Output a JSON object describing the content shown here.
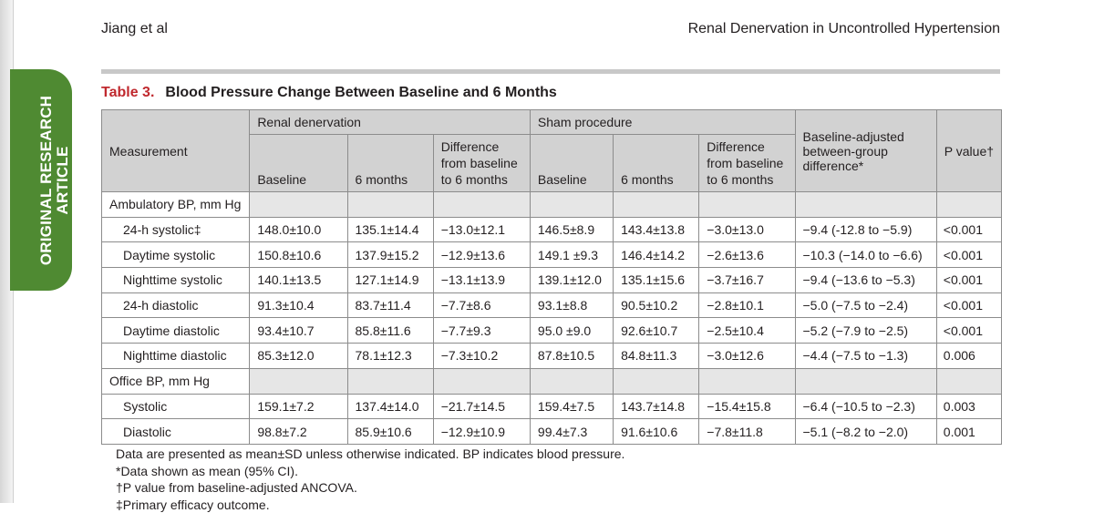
{
  "header": {
    "left": "Jiang et al",
    "right": "Renal Denervation in Uncontrolled Hypertension"
  },
  "side_tab": {
    "line1": "ORIGINAL RESEARCH",
    "line2": "ARTICLE"
  },
  "table": {
    "number": "Table 3.",
    "title": "Blood Pressure Change Between Baseline and 6 Months",
    "group_headers": {
      "rdn": "Renal denervation",
      "sham": "Sham procedure"
    },
    "col_headers": {
      "measurement": "Measurement",
      "baseline": "Baseline",
      "six_months": "6 months",
      "difference": [
        "Difference",
        "from baseline",
        "to 6 months"
      ],
      "adjusted": [
        "Baseline-adjusted",
        "between-group",
        "difference*"
      ],
      "p_value": "P value†"
    },
    "sections": [
      {
        "label": "Ambulatory BP, mm Hg",
        "rows": [
          {
            "measure": "24-h systolic‡",
            "rdn_base": "148.0±10.0",
            "rdn_6m": "135.1±14.4",
            "rdn_diff": "−13.0±12.1",
            "sham_base": "146.5±8.9",
            "sham_6m": "143.4±13.8",
            "sham_diff": "−3.0±13.0",
            "adj": "−9.4 (-12.8 to −5.9)",
            "p": "<0.001"
          },
          {
            "measure": "Daytime systolic",
            "rdn_base": "150.8±10.6",
            "rdn_6m": "137.9±15.2",
            "rdn_diff": "−12.9±13.6",
            "sham_base": "149.1 ±9.3",
            "sham_6m": "146.4±14.2",
            "sham_diff": "−2.6±13.6",
            "adj": "−10.3 (−14.0 to −6.6)",
            "p": "<0.001"
          },
          {
            "measure": "Nighttime systolic",
            "rdn_base": "140.1±13.5",
            "rdn_6m": "127.1±14.9",
            "rdn_diff": "−13.1±13.9",
            "sham_base": "139.1±12.0",
            "sham_6m": "135.1±15.6",
            "sham_diff": "−3.7±16.7",
            "adj": "−9.4 (−13.6 to −5.3)",
            "p": "<0.001"
          },
          {
            "measure": "24-h diastolic",
            "rdn_base": "91.3±10.4",
            "rdn_6m": "83.7±11.4",
            "rdn_diff": "−7.7±8.6",
            "sham_base": "93.1±8.8",
            "sham_6m": "90.5±10.2",
            "sham_diff": "−2.8±10.1",
            "adj": "−5.0 (−7.5 to −2.4)",
            "p": "<0.001"
          },
          {
            "measure": "Daytime diastolic",
            "rdn_base": "93.4±10.7",
            "rdn_6m": "85.8±11.6",
            "rdn_diff": "−7.7±9.3",
            "sham_base": "95.0 ±9.0",
            "sham_6m": "92.6±10.7",
            "sham_diff": "−2.5±10.4",
            "adj": "−5.2 (−7.9 to −2.5)",
            "p": "<0.001"
          },
          {
            "measure": "Nighttime diastolic",
            "rdn_base": "85.3±12.0",
            "rdn_6m": "78.1±12.3",
            "rdn_diff": "−7.3±10.2",
            "sham_base": "87.8±10.5",
            "sham_6m": "84.8±11.3",
            "sham_diff": "−3.0±12.6",
            "adj": "−4.4 (−7.5 to −1.3)",
            "p": "0.006"
          }
        ]
      },
      {
        "label": "Office BP, mm Hg",
        "rows": [
          {
            "measure": "Systolic",
            "rdn_base": "159.1±7.2",
            "rdn_6m": "137.4±14.0",
            "rdn_diff": "−21.7±14.5",
            "sham_base": "159.4±7.5",
            "sham_6m": "143.7±14.8",
            "sham_diff": "−15.4±15.8",
            "adj": "−6.4 (−10.5 to −2.3)",
            "p": "0.003"
          },
          {
            "measure": "Diastolic",
            "rdn_base": "98.8±7.2",
            "rdn_6m": "85.9±10.6",
            "rdn_diff": "−12.9±10.9",
            "sham_base": "99.4±7.3",
            "sham_6m": "91.6±10.6",
            "sham_diff": "−7.8±11.8",
            "adj": "−5.1 (−8.2 to −2.0)",
            "p": "0.001"
          }
        ]
      }
    ],
    "footnotes": [
      "Data are presented as mean±SD unless otherwise indicated. BP indicates blood pressure.",
      "*Data shown as mean (95% CI).",
      "†P value from baseline-adjusted ANCOVA.",
      "‡Primary efficacy outcome."
    ]
  },
  "colors": {
    "accent_red": "#c0292e",
    "tab_green": "#4f8a32",
    "header_gray": "#d2d2d2"
  }
}
